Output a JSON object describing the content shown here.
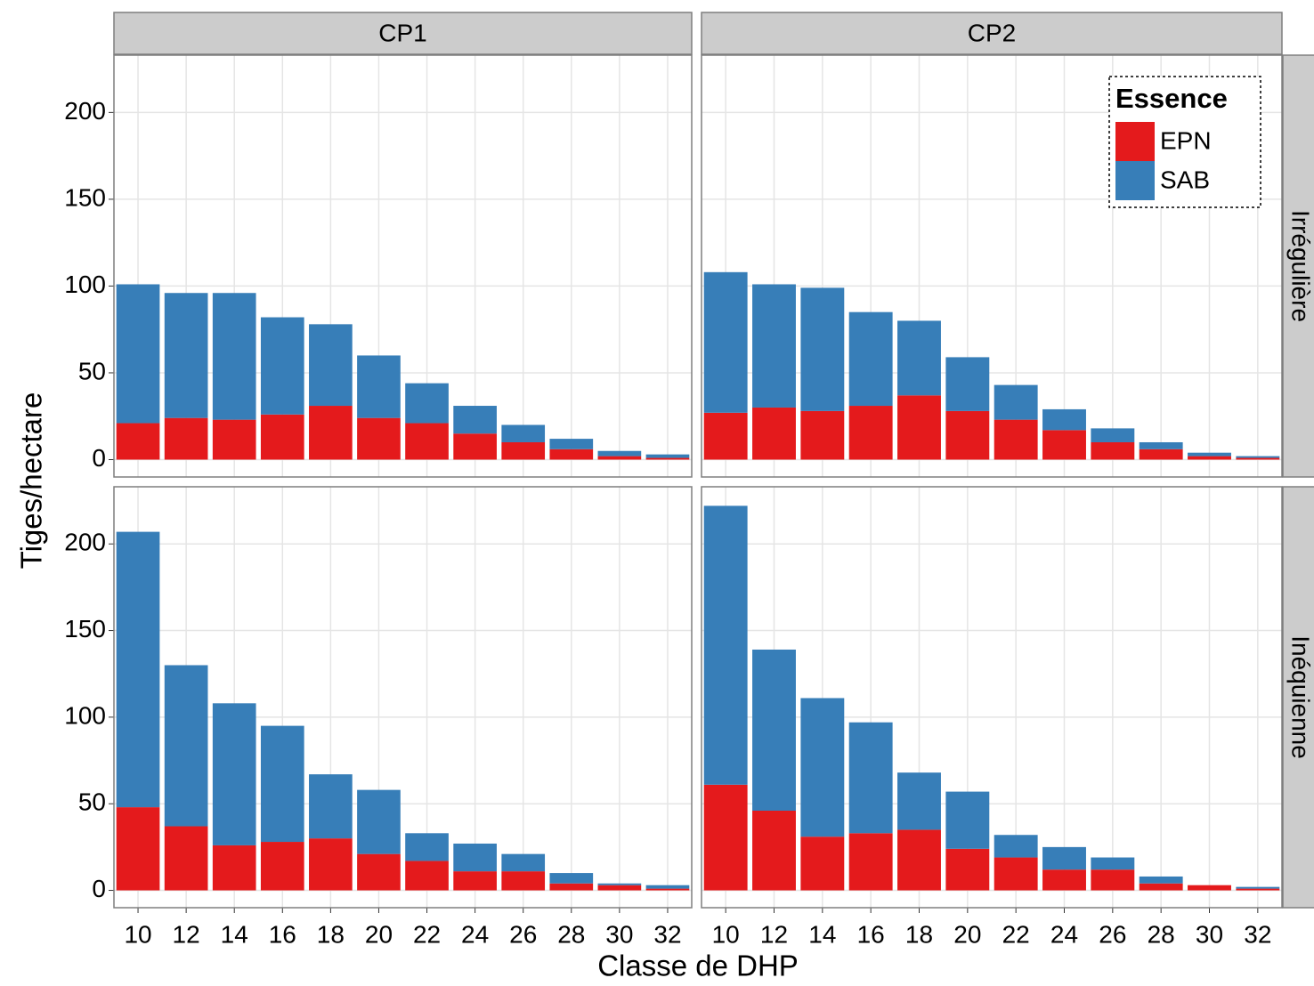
{
  "facets": {
    "columns": [
      "CP1",
      "CP2"
    ],
    "rows": [
      "Irrégulière",
      "Inéquienne"
    ]
  },
  "x_label": "Classe de DHP",
  "y_label": "Tiges/hectare",
  "legend": {
    "title": "Essence",
    "entries": [
      {
        "name": "EPN",
        "color": "#e41a1c"
      },
      {
        "name": "SAB",
        "color": "#377eb8"
      }
    ]
  },
  "chart_data": [
    {
      "type": "bar",
      "stacked": true,
      "grid": true,
      "categories": [
        "10",
        "12",
        "14",
        "16",
        "18",
        "20",
        "22",
        "24",
        "26",
        "28",
        "30",
        "32"
      ],
      "series": [
        {
          "name": "EPN",
          "values": [
            21,
            24,
            23,
            26,
            31,
            24,
            21,
            15,
            10,
            6,
            2,
            1
          ]
        },
        {
          "name": "SAB",
          "values": [
            80,
            72,
            73,
            56,
            47,
            36,
            23,
            16,
            10,
            6,
            3,
            2
          ]
        }
      ],
      "ylim": [
        -10,
        233
      ],
      "yticks": [
        0,
        50,
        100,
        150,
        200
      ]
    },
    {
      "type": "bar",
      "stacked": true,
      "grid": true,
      "categories": [
        "10",
        "12",
        "14",
        "16",
        "18",
        "20",
        "22",
        "24",
        "26",
        "28",
        "30",
        "32"
      ],
      "series": [
        {
          "name": "EPN",
          "values": [
            27,
            30,
            28,
            31,
            37,
            28,
            23,
            17,
            10,
            6,
            2,
            1
          ]
        },
        {
          "name": "SAB",
          "values": [
            81,
            71,
            71,
            54,
            43,
            31,
            20,
            12,
            8,
            4,
            2,
            1
          ]
        }
      ],
      "ylim": [
        -10,
        233
      ],
      "yticks": [
        0,
        50,
        100,
        150,
        200
      ]
    },
    {
      "type": "bar",
      "stacked": true,
      "grid": true,
      "categories": [
        "10",
        "12",
        "14",
        "16",
        "18",
        "20",
        "22",
        "24",
        "26",
        "28",
        "30",
        "32"
      ],
      "series": [
        {
          "name": "EPN",
          "values": [
            48,
            37,
            26,
            28,
            30,
            21,
            17,
            11,
            11,
            4,
            3,
            1
          ]
        },
        {
          "name": "SAB",
          "values": [
            159,
            93,
            82,
            67,
            37,
            37,
            16,
            16,
            10,
            6,
            1,
            2
          ]
        }
      ],
      "ylim": [
        -10,
        233
      ],
      "yticks": [
        0,
        50,
        100,
        150,
        200
      ]
    },
    {
      "type": "bar",
      "stacked": true,
      "grid": true,
      "categories": [
        "10",
        "12",
        "14",
        "16",
        "18",
        "20",
        "22",
        "24",
        "26",
        "28",
        "30",
        "32"
      ],
      "series": [
        {
          "name": "EPN",
          "values": [
            61,
            46,
            31,
            33,
            35,
            24,
            19,
            12,
            12,
            4,
            3,
            1
          ]
        },
        {
          "name": "SAB",
          "values": [
            161,
            93,
            80,
            64,
            33,
            33,
            13,
            13,
            7,
            4,
            0,
            1
          ]
        }
      ],
      "ylim": [
        -10,
        233
      ],
      "yticks": [
        0,
        50,
        100,
        150,
        200
      ]
    }
  ]
}
